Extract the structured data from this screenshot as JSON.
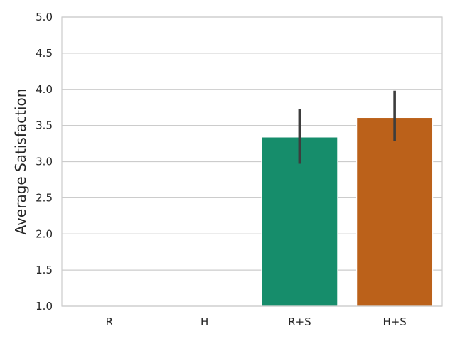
{
  "chart_data": {
    "type": "bar",
    "categories": [
      "R",
      "H",
      "R+S",
      "H+S"
    ],
    "values": [
      null,
      null,
      3.34,
      3.61
    ],
    "error_bars": [
      null,
      null,
      [
        2.97,
        3.73
      ],
      [
        3.29,
        3.98
      ]
    ],
    "colors": [
      null,
      null,
      "#168d6b",
      "#bb611a"
    ],
    "xlabel": "",
    "ylabel": "Average Satisfaction",
    "ylim": [
      1.0,
      5.0
    ],
    "yticks": [
      "1.0",
      "1.5",
      "2.0",
      "2.5",
      "3.0",
      "3.5",
      "4.0",
      "4.5",
      "5.0"
    ],
    "grid": true
  }
}
